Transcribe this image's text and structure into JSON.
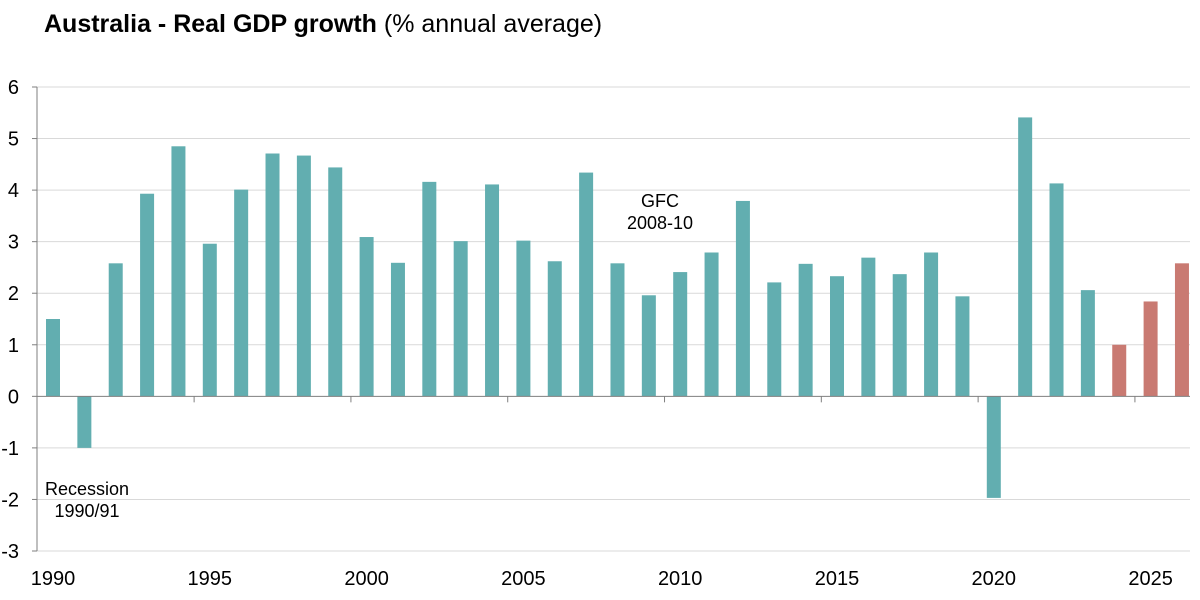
{
  "chart_data": {
    "type": "bar",
    "title_bold": "Australia - Real GDP growth",
    "title_normal": "(% annual average)",
    "xlabel": "",
    "ylabel": "",
    "ylim": [
      -3,
      6
    ],
    "yticks": [
      "6",
      "5",
      "4",
      "3",
      "2",
      "1",
      "0",
      "-1",
      "-2",
      "-3"
    ],
    "xtick_labels": [
      "1990",
      "1995",
      "2000",
      "2005",
      "2010",
      "2015",
      "2020",
      "2025"
    ],
    "colors": {
      "actual": "#62AEB0",
      "forecast": "#C97A72",
      "grid": "#D9D9D9",
      "axis": "#7F7F7F"
    },
    "x": [
      1990,
      1991,
      1992,
      1993,
      1994,
      1995,
      1996,
      1997,
      1998,
      1999,
      2000,
      2001,
      2002,
      2003,
      2004,
      2005,
      2006,
      2007,
      2008,
      2009,
      2010,
      2011,
      2012,
      2013,
      2014,
      2015,
      2016,
      2017,
      2018,
      2019,
      2020,
      2021,
      2022,
      2023,
      2024,
      2025,
      2026
    ],
    "values": [
      1.5,
      -1.0,
      2.58,
      3.93,
      4.85,
      2.96,
      4.01,
      4.71,
      4.67,
      4.44,
      3.09,
      2.59,
      4.16,
      3.01,
      4.11,
      3.02,
      2.62,
      4.34,
      2.58,
      1.96,
      2.41,
      2.79,
      3.79,
      2.21,
      2.57,
      2.33,
      2.69,
      2.37,
      2.79,
      1.94,
      -1.97,
      5.41,
      4.13,
      2.06,
      1.0,
      1.84,
      2.58
    ],
    "forecast_from": 2024,
    "annotations": [
      {
        "lines": [
          "Recession",
          "1990/91"
        ]
      },
      {
        "lines": [
          "GFC",
          "2008-10"
        ]
      }
    ]
  }
}
